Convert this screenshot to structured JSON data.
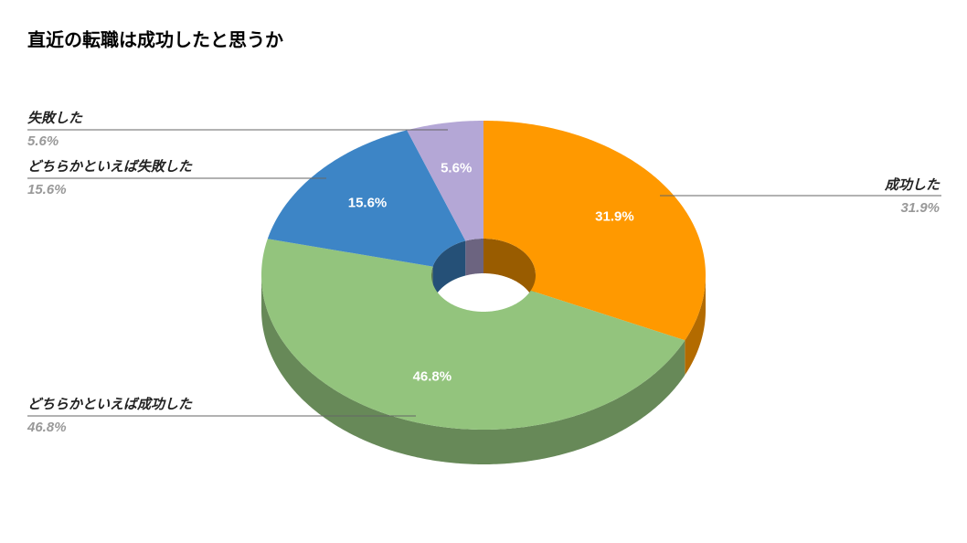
{
  "chart_data": {
    "type": "pie3d",
    "title": "直近の転職は成功したと思うか",
    "categories": [
      "成功した",
      "どちらかといえば成功した",
      "どちらかといえば失敗した",
      "失敗した"
    ],
    "values": [
      31.9,
      46.8,
      15.6,
      5.6
    ],
    "value_labels": [
      "31.9%",
      "46.8%",
      "15.6%",
      "5.6%"
    ],
    "colors": [
      "#ff9900",
      "#93c47d",
      "#3d85c6",
      "#b4a7d6"
    ]
  }
}
